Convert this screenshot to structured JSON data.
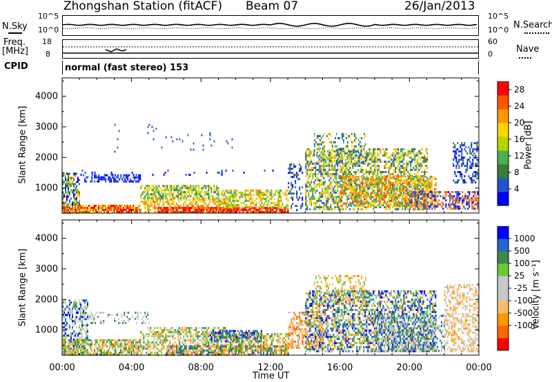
{
  "header": {
    "station": "Zhongshan Station (fitACF)",
    "beam": "Beam 07",
    "date": "26/Jan/2013"
  },
  "nsky_panel": {
    "left_label": "N.Sky",
    "right_label": "N.Search",
    "ticks_left": [
      "10^5",
      "10^0"
    ],
    "ticks_right": [
      "10^5",
      "10^0"
    ]
  },
  "freq_panel": {
    "left_label": "Freq.",
    "left_unit": "[MHz]",
    "right_label": "Nave",
    "ticks_left": [
      "18",
      "8"
    ],
    "ticks_right": [
      "60",
      "0"
    ]
  },
  "cpid": {
    "label": "CPID",
    "value": "normal (fast stereo) 153"
  },
  "colors": {
    "power_scale": [
      "#0000ff",
      "#2255cc",
      "#3d7a3d",
      "#4caf50",
      "#b5d400",
      "#ffd400",
      "#ff9900",
      "#ff5500",
      "#ff0000"
    ],
    "velocity_scale": [
      "#ff0000",
      "#ff6600",
      "#ff9900",
      "#ffbb66",
      "#c8c8c8",
      "#c8c8c8",
      "#66cc33",
      "#3d8a4a",
      "#2266cc",
      "#0000ff"
    ],
    "ground_scatter": "#b4b4b4"
  },
  "chart_data": [
    {
      "type": "heatmap",
      "name": "power",
      "xlabel": "",
      "ylabel": "Slant Range [km]",
      "x_ticks": [
        "00:00",
        "04:00",
        "08:00",
        "12:00",
        "16:00",
        "20:00",
        "00:00"
      ],
      "y_ticks": [
        1000,
        2000,
        3000,
        4000
      ],
      "ylim": [
        180,
        4600
      ],
      "xlim_hours": [
        0,
        24
      ],
      "colorbar": {
        "label": "Power [dB]",
        "ticks": [
          4,
          8,
          12,
          16,
          20,
          24,
          28
        ],
        "range": [
          0,
          30
        ]
      }
    },
    {
      "type": "heatmap",
      "name": "velocity",
      "xlabel": "Time UT",
      "ylabel": "Slant Range [km]",
      "x_ticks": [
        "00:00",
        "04:00",
        "08:00",
        "12:00",
        "16:00",
        "20:00",
        "00:00"
      ],
      "y_ticks": [
        1000,
        2000,
        3000,
        4000
      ],
      "ylim": [
        180,
        4600
      ],
      "xlim_hours": [
        0,
        24
      ],
      "colorbar": {
        "label": "Velocity [m s⁻¹]",
        "ticks": [
          "1000",
          "500",
          "100",
          "25",
          "-25",
          "-100",
          "-500",
          "-1000"
        ]
      }
    }
  ]
}
